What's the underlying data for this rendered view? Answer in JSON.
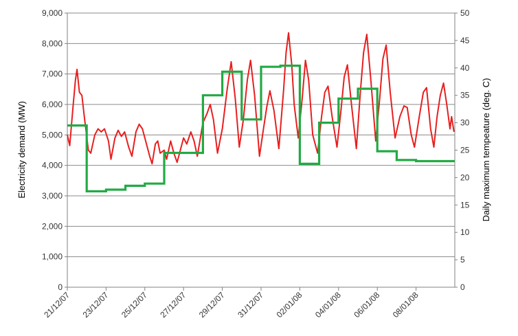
{
  "chart_data": {
    "type": "line",
    "xlabel": "",
    "ylabel": "Electricity demand (MW)",
    "y2label": "Daily maximum tempeature (deg. C)",
    "ylim": [
      0,
      9000
    ],
    "y2lim": [
      0,
      50
    ],
    "xlim": [
      "2007-12-21",
      "2008-01-09"
    ],
    "grid": "horizontal",
    "colors": {
      "demand": "#e81e1e",
      "temperature": "#22aa44",
      "grid": "#8a8a8a",
      "axis": "#808080"
    },
    "yticks": [
      "0",
      "1,000",
      "2,000",
      "3,000",
      "4,000",
      "5,000",
      "6,000",
      "7,000",
      "8,000",
      "9,000"
    ],
    "y2ticks": [
      "0",
      "5",
      "10",
      "15",
      "20",
      "25",
      "30",
      "35",
      "40",
      "45",
      "50"
    ],
    "xticks": [
      {
        "date": "2007-12-21",
        "label": "21/12/07"
      },
      {
        "date": "2007-12-23",
        "label": "23/12/07"
      },
      {
        "date": "2007-12-25",
        "label": "25/12/07"
      },
      {
        "date": "2007-12-27",
        "label": "27/12/07"
      },
      {
        "date": "2007-12-29",
        "label": "29/12/07"
      },
      {
        "date": "2007-12-31",
        "label": "31/12/07"
      },
      {
        "date": "2008-01-02",
        "label": "02/01/08"
      },
      {
        "date": "2008-01-04",
        "label": "04/01/08"
      },
      {
        "date": "2008-01-06",
        "label": "06/01/08"
      },
      {
        "date": "2008-01-08",
        "label": "08/01/08"
      }
    ],
    "series": [
      {
        "key": "demand",
        "axis": "left",
        "style": "line",
        "points": [
          [
            "2007-12-21 00:00",
            5000
          ],
          [
            "2007-12-21 03:00",
            4650
          ],
          [
            "2007-12-21 07:00",
            5900
          ],
          [
            "2007-12-21 10:00",
            6800
          ],
          [
            "2007-12-21 12:00",
            7150
          ],
          [
            "2007-12-21 15:00",
            6400
          ],
          [
            "2007-12-21 18:00",
            6300
          ],
          [
            "2007-12-21 21:00",
            5600
          ],
          [
            "2007-12-22 02:00",
            4500
          ],
          [
            "2007-12-22 05:00",
            4400
          ],
          [
            "2007-12-22 10:00",
            5000
          ],
          [
            "2007-12-22 14:00",
            5200
          ],
          [
            "2007-12-22 18:00",
            5100
          ],
          [
            "2007-12-22 22:00",
            5200
          ],
          [
            "2007-12-23 03:00",
            4800
          ],
          [
            "2007-12-23 06:00",
            4200
          ],
          [
            "2007-12-23 11:00",
            4900
          ],
          [
            "2007-12-23 15:00",
            5150
          ],
          [
            "2007-12-23 19:00",
            4950
          ],
          [
            "2007-12-23 23:00",
            5100
          ],
          [
            "2007-12-24 04:00",
            4600
          ],
          [
            "2007-12-24 08:00",
            4300
          ],
          [
            "2007-12-24 13:00",
            5100
          ],
          [
            "2007-12-24 17:00",
            5350
          ],
          [
            "2007-12-24 21:00",
            5200
          ],
          [
            "2007-12-25 02:00",
            4700
          ],
          [
            "2007-12-25 06:00",
            4300
          ],
          [
            "2007-12-25 09:00",
            4050
          ],
          [
            "2007-12-25 13:00",
            4700
          ],
          [
            "2007-12-25 16:00",
            4800
          ],
          [
            "2007-12-25 19:00",
            4400
          ],
          [
            "2007-12-26 00:00",
            4500
          ],
          [
            "2007-12-26 03:00",
            4200
          ],
          [
            "2007-12-26 08:00",
            4800
          ],
          [
            "2007-12-26 12:00",
            4400
          ],
          [
            "2007-12-26 16:00",
            4100
          ],
          [
            "2007-12-27 00:00",
            4900
          ],
          [
            "2007-12-27 04:00",
            4700
          ],
          [
            "2007-12-27 09:00",
            5100
          ],
          [
            "2007-12-27 13:00",
            4800
          ],
          [
            "2007-12-27 17:00",
            4300
          ],
          [
            "2007-12-28 00:00",
            5400
          ],
          [
            "2007-12-28 05:00",
            5700
          ],
          [
            "2007-12-28 09:00",
            6000
          ],
          [
            "2007-12-28 13:00",
            5500
          ],
          [
            "2007-12-28 18:00",
            4400
          ],
          [
            "2007-12-29 00:00",
            5200
          ],
          [
            "2007-12-29 06:00",
            6500
          ],
          [
            "2007-12-29 11:00",
            7400
          ],
          [
            "2007-12-29 16:00",
            6200
          ],
          [
            "2007-12-29 21:00",
            4600
          ],
          [
            "2007-12-30 02:00",
            5500
          ],
          [
            "2007-12-30 07:00",
            6800
          ],
          [
            "2007-12-30 11:00",
            7450
          ],
          [
            "2007-12-30 16:00",
            6300
          ],
          [
            "2007-12-30 22:00",
            4300
          ],
          [
            "2007-12-31 03:00",
            5200
          ],
          [
            "2007-12-31 07:00",
            5900
          ],
          [
            "2007-12-31 11:00",
            6450
          ],
          [
            "2007-12-31 16:00",
            5800
          ],
          [
            "2007-12-31 22:00",
            4550
          ],
          [
            "2008-01-01 04:00",
            6500
          ],
          [
            "2008-01-01 07:00",
            7700
          ],
          [
            "2008-01-01 10:00",
            8350
          ],
          [
            "2008-01-01 14:00",
            7300
          ],
          [
            "2008-01-01 17:00",
            6000
          ],
          [
            "2008-01-01 22:00",
            4900
          ],
          [
            "2008-01-02 03:00",
            6200
          ],
          [
            "2008-01-02 07:00",
            7450
          ],
          [
            "2008-01-02 11:00",
            6800
          ],
          [
            "2008-01-02 16:00",
            5000
          ],
          [
            "2008-01-02 22:00",
            4400
          ],
          [
            "2008-01-03 03:00",
            5600
          ],
          [
            "2008-01-03 07:00",
            6400
          ],
          [
            "2008-01-03 11:00",
            6600
          ],
          [
            "2008-01-03 16:00",
            5600
          ],
          [
            "2008-01-03 22:00",
            4600
          ],
          [
            "2008-01-04 03:00",
            5800
          ],
          [
            "2008-01-04 07:00",
            6900
          ],
          [
            "2008-01-04 11:00",
            7300
          ],
          [
            "2008-01-04 16:00",
            6000
          ],
          [
            "2008-01-04 22:00",
            4550
          ],
          [
            "2008-01-05 03:00",
            6400
          ],
          [
            "2008-01-05 07:00",
            7700
          ],
          [
            "2008-01-05 11:00",
            8300
          ],
          [
            "2008-01-05 16:00",
            6800
          ],
          [
            "2008-01-05 22:00",
            4800
          ],
          [
            "2008-01-06 03:00",
            6200
          ],
          [
            "2008-01-06 07:00",
            7500
          ],
          [
            "2008-01-06 11:00",
            7950
          ],
          [
            "2008-01-06 16:00",
            6400
          ],
          [
            "2008-01-06 22:00",
            4900
          ],
          [
            "2008-01-07 04:00",
            5600
          ],
          [
            "2008-01-07 09:00",
            5950
          ],
          [
            "2008-01-07 13:00",
            5900
          ],
          [
            "2008-01-07 18:00",
            5000
          ],
          [
            "2008-01-07 22:00",
            4600
          ],
          [
            "2008-01-08 04:00",
            5600
          ],
          [
            "2008-01-08 09:00",
            6400
          ],
          [
            "2008-01-08 13:00",
            6550
          ],
          [
            "2008-01-08 18:00",
            5200
          ],
          [
            "2008-01-08 22:00",
            4600
          ],
          [
            "2008-01-09 02:00",
            5600
          ],
          [
            "2008-01-09 06:00",
            6300
          ],
          [
            "2008-01-09 10:00",
            6700
          ],
          [
            "2008-01-09 14:00",
            6000
          ],
          [
            "2008-01-09 18:00",
            5200
          ],
          [
            "2008-01-09 20:00",
            5600
          ],
          [
            "2008-01-09 23:00",
            5100
          ]
        ]
      },
      {
        "key": "temperature",
        "axis": "right",
        "style": "step",
        "points": [
          [
            "2007-12-21",
            29.5
          ],
          [
            "2007-12-22",
            17.5
          ],
          [
            "2007-12-23",
            17.8
          ],
          [
            "2007-12-24",
            18.5
          ],
          [
            "2007-12-25",
            18.9
          ],
          [
            "2007-12-26",
            24.5
          ],
          [
            "2007-12-27",
            24.5
          ],
          [
            "2007-12-28",
            35.0
          ],
          [
            "2007-12-29",
            39.3
          ],
          [
            "2007-12-30",
            30.6
          ],
          [
            "2007-12-31",
            40.2
          ],
          [
            "2008-01-01",
            40.4
          ],
          [
            "2008-01-02",
            22.5
          ],
          [
            "2008-01-03",
            30.0
          ],
          [
            "2008-01-04",
            34.4
          ],
          [
            "2008-01-05",
            36.2
          ],
          [
            "2008-01-06",
            24.8
          ],
          [
            "2008-01-07",
            23.2
          ],
          [
            "2008-01-08",
            23.0
          ],
          [
            "2008-01-09",
            23.0
          ]
        ],
        "end": "2008-01-09 23:59"
      }
    ]
  }
}
